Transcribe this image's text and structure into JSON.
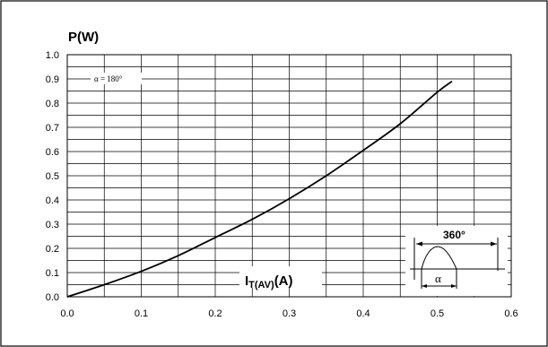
{
  "chart_data": {
    "type": "line",
    "ylabel": "P(W)",
    "xlabel_main": "I",
    "xlabel_sub": "T(AV)",
    "xlabel_unit": "(A)",
    "xlim": [
      0.0,
      0.6
    ],
    "ylim": [
      0.0,
      1.0
    ],
    "x_ticks": [
      "0.0",
      "0.1",
      "0.2",
      "0.3",
      "0.4",
      "0.5",
      "0.6"
    ],
    "y_ticks": [
      "0.0",
      "0.1",
      "0.2",
      "0.3",
      "0.4",
      "0.5",
      "0.6",
      "0.7",
      "0.8",
      "0.9",
      "1.0"
    ],
    "grid": true,
    "annotation": "α = 180°",
    "inset": {
      "period_label": "360°",
      "angle_label": "α"
    },
    "series": [
      {
        "x": [
          0.0,
          0.05,
          0.1,
          0.15,
          0.2,
          0.25,
          0.3,
          0.35,
          0.4,
          0.45,
          0.5,
          0.52
        ],
        "y": [
          0.0,
          0.05,
          0.105,
          0.17,
          0.245,
          0.32,
          0.405,
          0.5,
          0.605,
          0.715,
          0.845,
          0.89
        ]
      }
    ]
  }
}
